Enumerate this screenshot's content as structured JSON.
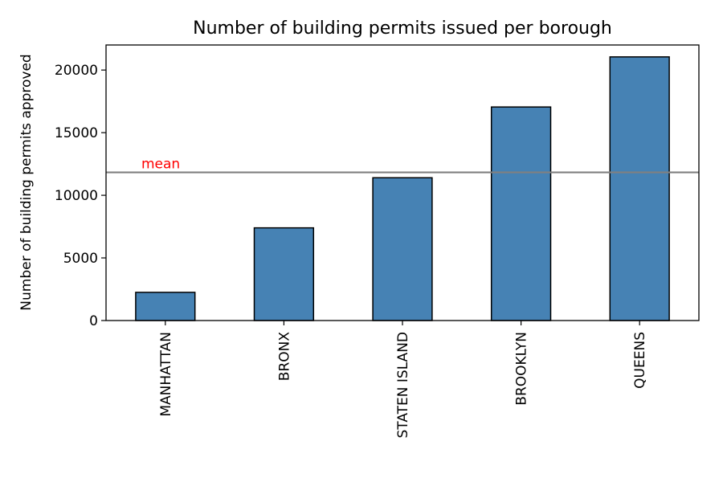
{
  "chart_data": {
    "type": "bar",
    "title": "Number of building permits issued per borough",
    "xlabel": "",
    "ylabel": "Number of building permits approved",
    "categories": [
      "MANHATTAN",
      "BRONX",
      "STATEN ISLAND",
      "BROOKLYN",
      "QUEENS"
    ],
    "values": [
      2250,
      7400,
      11400,
      17050,
      21050
    ],
    "ylim": [
      0,
      22000
    ],
    "yticks": [
      0,
      5000,
      10000,
      15000,
      20000
    ],
    "ytick_labels": [
      "0",
      "5000",
      "10000",
      "15000",
      "20000"
    ],
    "bar_color": "#4682b4",
    "bar_edge_color": "#000000",
    "grid": false,
    "legend": "none",
    "reference_line": {
      "label": "mean",
      "value": 11830,
      "line_color": "#808080",
      "label_color": "#ff0000"
    }
  }
}
